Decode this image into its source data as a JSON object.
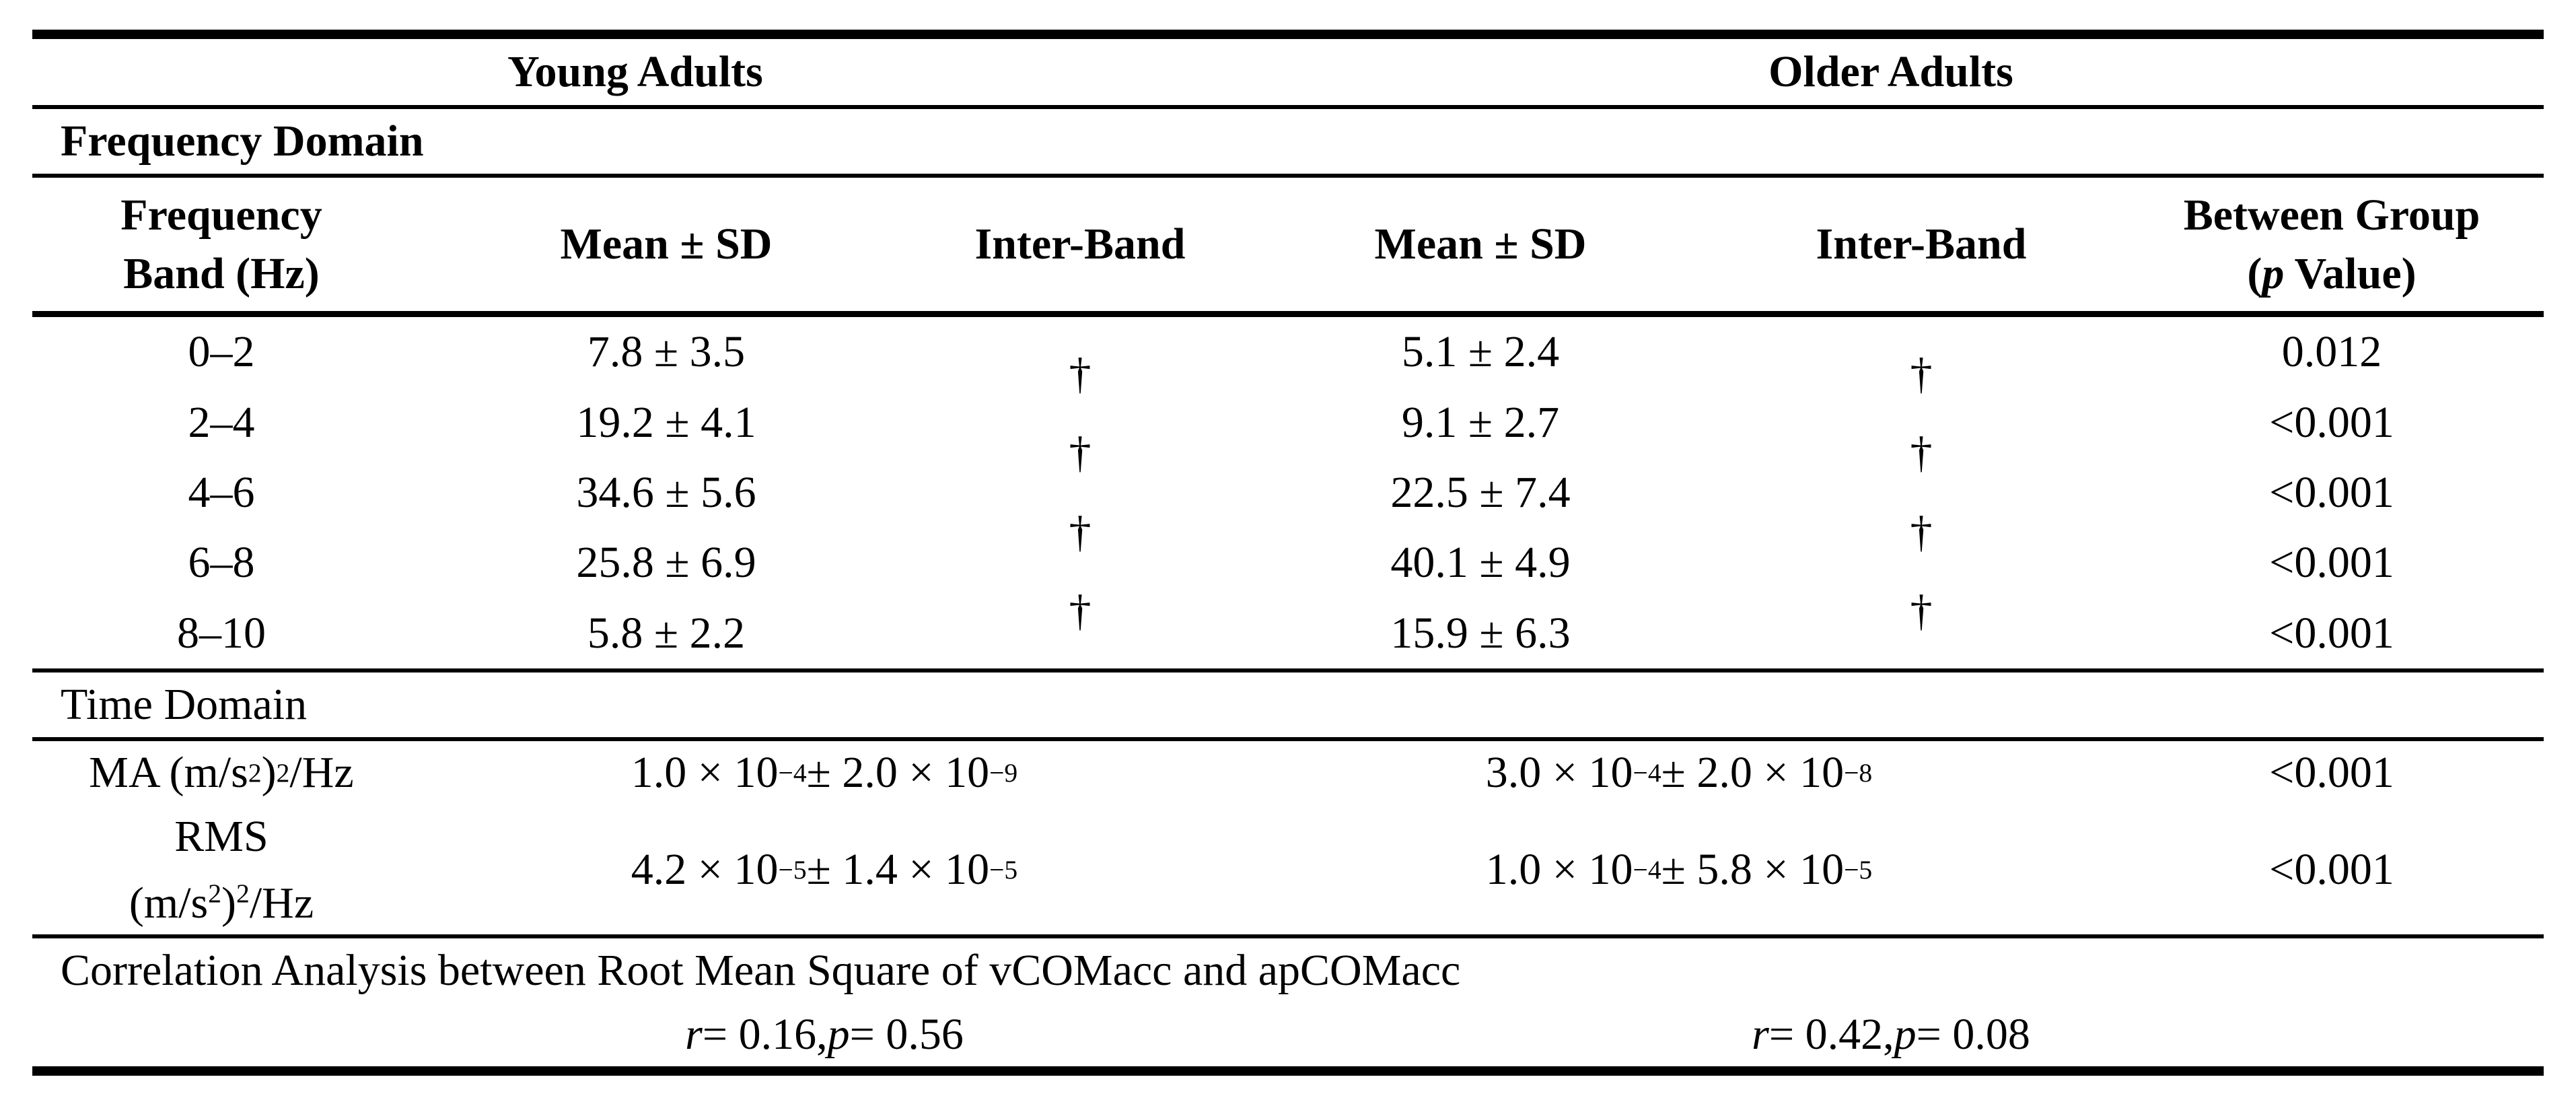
{
  "group_header": {
    "young": "Young Adults",
    "older": "Older Adults"
  },
  "section_labels": {
    "frequency_domain": "Frequency Domain",
    "time_domain": "Time Domain"
  },
  "column_headers": {
    "band_line1": "Frequency",
    "band_line2": "Band (Hz)",
    "mean_sd_young": "Mean ± SD",
    "inter_band_young": "Inter-Band",
    "mean_sd_older": "Mean ± SD",
    "inter_band_older": "Inter-Band",
    "between_group_line1": "Between Group",
    "between_group_line2": "(*{p} Value)"
  },
  "frequency_rows": [
    {
      "band": "0–2",
      "young_mean": "7.8 ± 3.5",
      "older_mean": "5.1 ± 2.4",
      "p_value": "0.012"
    },
    {
      "band": "2–4",
      "young_mean": "19.2 ± 4.1",
      "older_mean": "9.1 ± 2.7",
      "p_value": "<0.001"
    },
    {
      "band": "4–6",
      "young_mean": "34.6 ± 5.6",
      "older_mean": "22.5 ± 7.4",
      "p_value": "<0.001"
    },
    {
      "band": "6–8",
      "young_mean": "25.8 ± 6.9",
      "older_mean": "40.1 ± 4.9",
      "p_value": "<0.001"
    },
    {
      "band": "8–10",
      "young_mean": "5.8 ± 2.2",
      "older_mean": "15.9 ± 6.3",
      "p_value": "<0.001"
    }
  ],
  "inter_band_markers": {
    "young": [
      "†",
      "†",
      "†",
      "†"
    ],
    "older": [
      "†",
      "†",
      "†",
      "†"
    ]
  },
  "time_rows": [
    {
      "label": "MA (m/s^{2})^{2}/Hz",
      "young_mean": "1.0 × 10^{−4} ± 2.0 × 10^{−9}",
      "older_mean": "3.0 × 10^{−4} ± 2.0 × 10^{−8}",
      "p_value": "<0.001"
    },
    {
      "label_line1": "RMS",
      "label_line2": "(m/s^{2})^{2}/Hz",
      "young_mean": "4.2 × 10^{−5} ± 1.4 × 10^{−5}",
      "older_mean": "1.0 × 10^{−4} ± 5.8 × 10^{−5}",
      "p_value": "<0.001"
    }
  ],
  "correlation": {
    "title": "Correlation Analysis between Root Mean Square of vCOMacc and apCOMacc",
    "young": "*{r} = 0.16, *{p} = 0.56",
    "older": "*{r} = 0.42, *{p} = 0.08"
  }
}
